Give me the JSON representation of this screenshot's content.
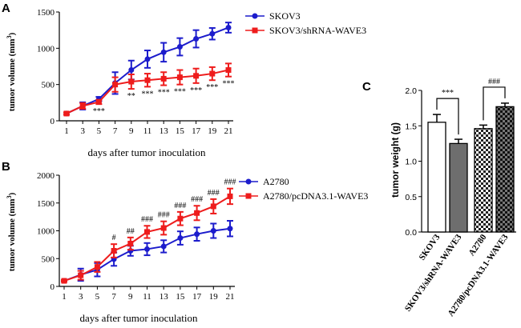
{
  "chart_data": [
    {
      "type": "line",
      "panel": "A",
      "ylabel": "tumor volume (mm³)",
      "ylabel_main": "tumor volume (mm",
      "ylabel_sup": "3",
      "ylabel_tail": ")",
      "xlabel": "days after tumor inoculation",
      "x": [
        1,
        3,
        5,
        7,
        9,
        11,
        13,
        15,
        17,
        19,
        21
      ],
      "ylim": [
        0,
        1500
      ],
      "yticks": [
        0,
        500,
        1000,
        1500
      ],
      "series": [
        {
          "name": "SKOV3",
          "color": "#1c1ccc",
          "marker": "circle",
          "values": [
            100,
            205,
            300,
            520,
            700,
            850,
            945,
            1020,
            1130,
            1200,
            1285
          ],
          "errors": [
            15,
            50,
            30,
            150,
            130,
            120,
            130,
            120,
            120,
            80,
            70
          ]
        },
        {
          "name": "SKOV3/shRNA-WAVE3",
          "color": "#ee1c1c",
          "marker": "square",
          "values": [
            100,
            205,
            260,
            500,
            540,
            560,
            580,
            600,
            620,
            650,
            700
          ],
          "errors": [
            15,
            40,
            30,
            100,
            100,
            90,
            90,
            100,
            100,
            90,
            90
          ]
        }
      ],
      "annotations": [
        {
          "x": 5,
          "text": "***"
        },
        {
          "x": 9,
          "text": "**"
        },
        {
          "x": 11,
          "text": "***"
        },
        {
          "x": 13,
          "text": "***"
        },
        {
          "x": 15,
          "text": "***"
        },
        {
          "x": 17,
          "text": "***"
        },
        {
          "x": 19,
          "text": "***"
        },
        {
          "x": 21,
          "text": "***"
        }
      ]
    },
    {
      "type": "line",
      "panel": "B",
      "ylabel": "tumor volume (mm³)",
      "ylabel_main": "tumor volume (mm",
      "ylabel_sup": "3",
      "ylabel_tail": ")",
      "xlabel": "days after tumor inoculation",
      "x": [
        1,
        3,
        5,
        7,
        9,
        11,
        13,
        15,
        17,
        19,
        21
      ],
      "ylim": [
        0,
        2000
      ],
      "yticks": [
        0,
        500,
        1000,
        1500,
        2000
      ],
      "series": [
        {
          "name": "A2780",
          "color": "#1c1ccc",
          "marker": "circle",
          "values": [
            100,
            210,
            300,
            490,
            640,
            670,
            720,
            870,
            940,
            1000,
            1040
          ],
          "errors": [
            15,
            110,
            120,
            120,
            90,
            110,
            110,
            120,
            120,
            130,
            140
          ]
        },
        {
          "name": "A2780/pcDNA3.1-WAVE3",
          "color": "#ee1c1c",
          "marker": "square",
          "values": [
            100,
            200,
            350,
            640,
            770,
            980,
            1050,
            1220,
            1320,
            1440,
            1620
          ],
          "errors": [
            15,
            80,
            90,
            120,
            110,
            110,
            120,
            120,
            130,
            130,
            140
          ]
        }
      ],
      "annotations": [
        {
          "x": 7,
          "text": "#"
        },
        {
          "x": 9,
          "text": "##"
        },
        {
          "x": 11,
          "text": "###"
        },
        {
          "x": 13,
          "text": "###"
        },
        {
          "x": 15,
          "text": "###"
        },
        {
          "x": 17,
          "text": "###"
        },
        {
          "x": 19,
          "text": "###"
        },
        {
          "x": 21,
          "text": "###"
        }
      ]
    },
    {
      "type": "bar",
      "panel": "C",
      "ylabel": "tumor weight (g)",
      "categories": [
        "SKOV3",
        "SKOV3/shRNA-WAVE3",
        "A2780",
        "A2780/pcDNA3.1-WAVE3"
      ],
      "values": [
        1.55,
        1.25,
        1.46,
        1.77
      ],
      "errors": [
        0.11,
        0.06,
        0.05,
        0.05
      ],
      "fills": [
        "white",
        "gray",
        "checker",
        "checker-dark"
      ],
      "ylim": [
        0,
        2.0
      ],
      "yticks": [
        "0.0",
        "0.5",
        "1.0",
        "1.5",
        "2.0"
      ],
      "comparisons": [
        {
          "between": [
            0,
            1
          ],
          "text": "***"
        },
        {
          "between": [
            2,
            3
          ],
          "text": "###"
        }
      ]
    }
  ]
}
